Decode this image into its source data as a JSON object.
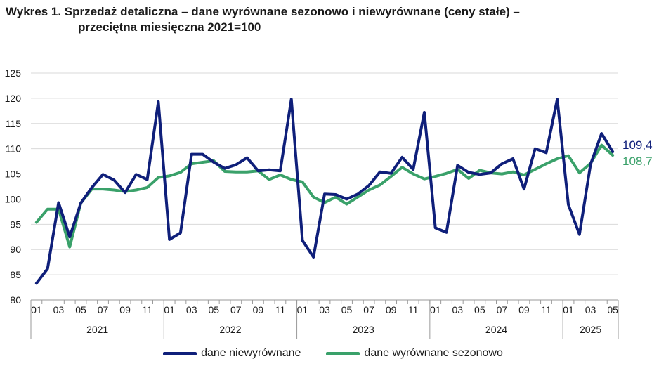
{
  "title": {
    "line1": "Wykres 1. Sprzedaż detaliczna – dane wyrównane sezonowo i niewyrównane (ceny stałe) –",
    "line2": "przeciętna miesięczna 2021=100"
  },
  "colors": {
    "navy": "#0f1f7a",
    "green": "#3aa16a",
    "grid": "#d9d9d9"
  },
  "chart_data": {
    "type": "line",
    "ylim": [
      80,
      125
    ],
    "yticks": [
      "80",
      "85",
      "90",
      "95",
      "100",
      "105",
      "110",
      "115",
      "120",
      "125"
    ],
    "x_ticks": [
      "01",
      "03",
      "05",
      "07",
      "09",
      "11",
      "01",
      "03",
      "05",
      "07",
      "09",
      "11",
      "01",
      "03",
      "05",
      "07",
      "09",
      "11",
      "01",
      "03",
      "05",
      "07",
      "09",
      "11",
      "01",
      "03",
      "05"
    ],
    "years": [
      "2021",
      "2022",
      "2023",
      "2024",
      "2025"
    ],
    "months_per_year": [
      12,
      12,
      12,
      12,
      5
    ],
    "series": [
      {
        "name": "dane niewyrównane",
        "color": "#0f1f7a",
        "end_label": "109,4",
        "values": [
          83.3,
          86.2,
          99.3,
          92.5,
          99.2,
          102.3,
          104.9,
          103.8,
          101.3,
          104.9,
          103.9,
          119.3,
          92.0,
          93.3,
          108.9,
          108.9,
          107.3,
          106.1,
          106.8,
          108.2,
          105.6,
          105.8,
          105.6,
          119.8,
          91.8,
          88.5,
          101.0,
          100.9,
          100.0,
          101.0,
          102.7,
          105.4,
          105.1,
          108.3,
          105.9,
          117.2,
          94.3,
          93.4,
          106.7,
          105.3,
          104.9,
          105.2,
          107.0,
          108.0,
          102.0,
          110.0,
          109.2,
          119.8,
          98.9,
          93.0,
          106.9,
          113.0,
          109.4
        ]
      },
      {
        "name": "dane wyrównane sezonowo",
        "color": "#3aa16a",
        "end_label": "108,7",
        "values": [
          95.4,
          98.0,
          98.0,
          90.5,
          99.2,
          102.0,
          102.0,
          101.8,
          101.5,
          101.8,
          102.3,
          104.3,
          104.6,
          105.3,
          107.0,
          107.3,
          107.6,
          105.5,
          105.4,
          105.4,
          105.6,
          103.9,
          104.8,
          103.9,
          103.4,
          100.4,
          99.3,
          100.4,
          99.0,
          100.4,
          101.8,
          102.8,
          104.5,
          106.3,
          105.0,
          104.0,
          104.5,
          105.1,
          105.9,
          104.1,
          105.7,
          105.2,
          105.0,
          105.4,
          104.8,
          105.9,
          107.0,
          108.0,
          108.6,
          105.2,
          107.1,
          110.7,
          108.7
        ]
      }
    ],
    "legend": "bottom",
    "grid": true
  }
}
